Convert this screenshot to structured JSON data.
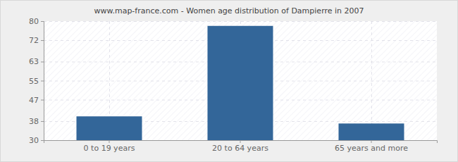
{
  "chart_data": {
    "type": "bar",
    "title": "www.map-france.com - Women age distribution of Dampierre in 2007",
    "categories": [
      "0 to 19 years",
      "20 to 64 years",
      "65 years and more"
    ],
    "values": [
      40,
      78,
      37
    ],
    "color": "#336699",
    "ylim": [
      30,
      80
    ],
    "yticks": [
      30,
      38,
      47,
      55,
      63,
      72,
      80
    ],
    "grid": true
  }
}
